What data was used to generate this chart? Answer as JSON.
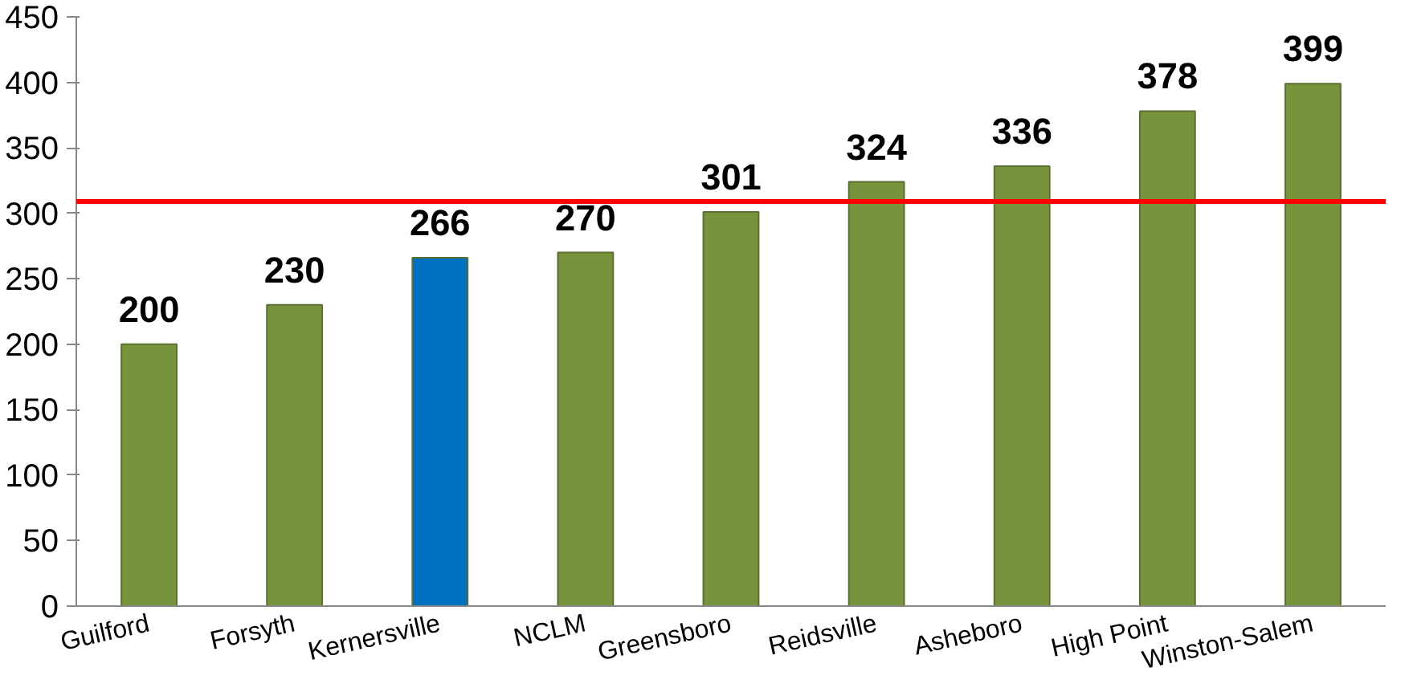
{
  "chart_data": {
    "type": "bar",
    "categories": [
      "Guilford",
      "Forsyth",
      "Kernersville",
      "NCLM",
      "Greensboro",
      "Reidsville",
      "Asheboro",
      "High Point",
      "Winston-Salem"
    ],
    "values": [
      200,
      230,
      266,
      270,
      301,
      324,
      336,
      378,
      399
    ],
    "colors": [
      "#77933c",
      "#77933c",
      "#0070c0",
      "#77933c",
      "#77933c",
      "#77933c",
      "#77933c",
      "#77933c",
      "#77933c"
    ],
    "data_labels": true,
    "ylim": [
      0,
      450
    ],
    "yticks": [
      0,
      50,
      100,
      150,
      200,
      250,
      300,
      350,
      400,
      450
    ],
    "ref_lines": [
      {
        "axis": "y",
        "value": 309,
        "color": "#ff0000"
      }
    ],
    "grid": false
  }
}
